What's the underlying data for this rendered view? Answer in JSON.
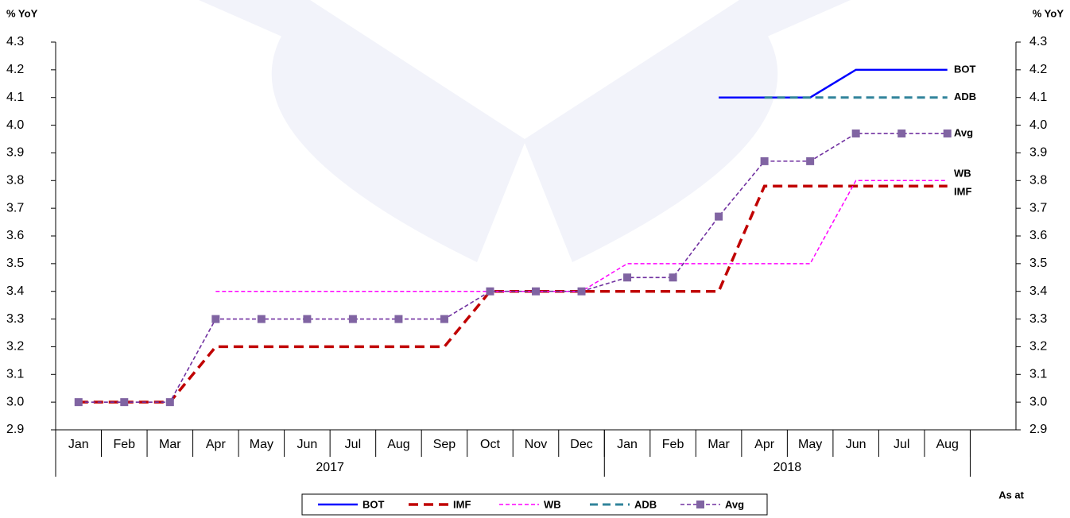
{
  "chart_data": {
    "type": "line",
    "y_label": "% YoY",
    "note": "As at",
    "categories": [
      "Jan",
      "Feb",
      "Mar",
      "Apr",
      "May",
      "Jun",
      "Jul",
      "Aug",
      "Sep",
      "Oct",
      "Nov",
      "Dec",
      "Jan",
      "Feb",
      "Mar",
      "Apr",
      "May",
      "Jun",
      "Jul",
      "Aug",
      null
    ],
    "x_groups": [
      "2017",
      "2018"
    ],
    "ylim": [
      2.9,
      4.3
    ],
    "yticks": [
      2.9,
      {
        "value": 3,
        "label": "3.0"
      },
      3.1,
      3.2,
      3.3,
      3.4,
      3.5,
      3.6,
      3.7,
      3.8,
      3.9,
      {
        "value": 4,
        "label": "4.0"
      },
      4.1,
      4.2,
      4.3
    ],
    "series": [
      {
        "name": "BOT",
        "color": "#0000ff",
        "values": [
          null,
          null,
          null,
          null,
          null,
          null,
          null,
          null,
          null,
          null,
          null,
          null,
          null,
          null,
          4.1,
          4.1,
          4.1,
          4.2,
          4.2,
          4.2,
          null
        ]
      },
      {
        "name": "IMF",
        "color": "#c00000",
        "values": [
          3.0,
          3.0,
          3.0,
          3.2,
          3.2,
          3.2,
          3.2,
          3.2,
          3.2,
          3.4,
          3.4,
          3.4,
          3.4,
          3.4,
          3.4,
          3.78,
          3.78,
          3.78,
          3.78,
          3.78,
          null
        ]
      },
      {
        "name": "WB",
        "color": "#ff00ff",
        "values": [
          null,
          null,
          null,
          3.4,
          3.4,
          3.4,
          3.4,
          3.4,
          3.4,
          3.4,
          3.4,
          3.4,
          3.5,
          3.5,
          3.5,
          3.5,
          3.5,
          3.8,
          3.8,
          3.8,
          null
        ]
      },
      {
        "name": "ADB",
        "color": "#31849b",
        "values": [
          null,
          null,
          null,
          null,
          null,
          null,
          null,
          null,
          null,
          null,
          null,
          null,
          null,
          null,
          null,
          4.1,
          4.1,
          4.1,
          4.1,
          4.1,
          null
        ]
      },
      {
        "name": "Avg",
        "color": "#7030a0",
        "values": [
          3.0,
          3.0,
          3.0,
          3.3,
          3.3,
          3.3,
          3.3,
          3.3,
          3.3,
          3.4,
          3.4,
          3.4,
          3.45,
          3.45,
          3.67,
          3.87,
          3.87,
          3.97,
          3.97,
          3.97,
          null
        ]
      }
    ]
  }
}
